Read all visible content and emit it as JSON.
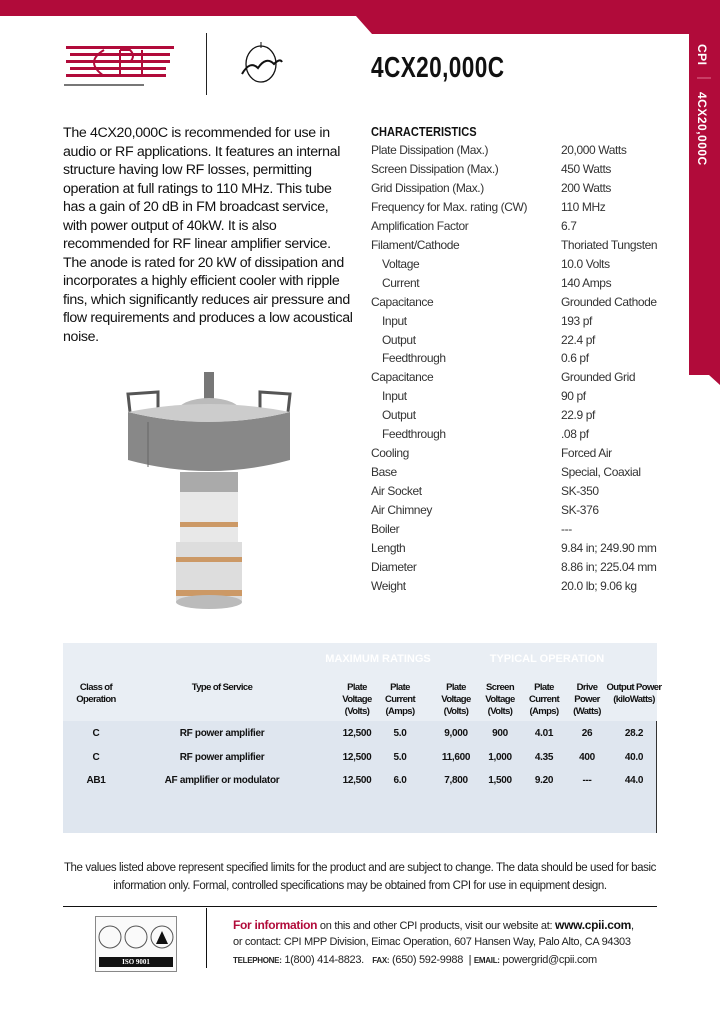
{
  "brand": {
    "color": "#b10b3a",
    "company": "CPI",
    "tagline": "Communications & Power Industries",
    "sub_brand": "Eimac"
  },
  "sidebar": {
    "brand": "CPI",
    "model": "4CX20,000C"
  },
  "title": "4CX20,000C",
  "intro": "The 4CX20,000C is recommended for use in audio or RF applications. It features an internal structure having low RF losses, permitting operation at full ratings to 110 MHz. This tube has a gain of 20 dB in FM broadcast service, with power output of 40kW. It is also recommended for RF linear amplifier service. The anode is rated for 20 kW of dissipation and incorporates a highly efficient cooler with ripple fins, which significantly reduces air pressure and flow requirements and produces a low acoustical noise.",
  "characteristics": {
    "heading": "CHARACTERISTICS",
    "rows": [
      {
        "label": "Plate Dissipation (Max.)",
        "value": "20,000 Watts"
      },
      {
        "label": "Screen Dissipation (Max.)",
        "value": "450 Watts"
      },
      {
        "label": "Grid Dissipation (Max.)",
        "value": "200 Watts"
      },
      {
        "label": "Frequency for Max. rating (CW)",
        "value": "110 MHz"
      },
      {
        "label": "Amplification Factor",
        "value": "6.7"
      },
      {
        "label": "Filament/Cathode",
        "value": "Thoriated Tungsten"
      },
      {
        "label": "Voltage",
        "value": "10.0 Volts",
        "indent": true
      },
      {
        "label": "Current",
        "value": "140 Amps",
        "indent": true
      },
      {
        "label": "Capacitance",
        "value": "Grounded Cathode"
      },
      {
        "label": "Input",
        "value": "193 pf",
        "indent": true
      },
      {
        "label": "Output",
        "value": "22.4 pf",
        "indent": true
      },
      {
        "label": "Feedthrough",
        "value": "0.6 pf",
        "indent": true
      },
      {
        "label": "Capacitance",
        "value": "Grounded Grid"
      },
      {
        "label": "Input",
        "value": "90 pf",
        "indent": true
      },
      {
        "label": "Output",
        "value": "22.9 pf",
        "indent": true
      },
      {
        "label": "Feedthrough",
        "value": ".08 pf",
        "indent": true
      },
      {
        "label": "Cooling",
        "value": "Forced Air"
      },
      {
        "label": "Base",
        "value": "Special, Coaxial"
      },
      {
        "label": "Air Socket",
        "value": "SK-350"
      },
      {
        "label": "Air Chimney",
        "value": "SK-376"
      },
      {
        "label": "Boiler",
        "value": "---"
      },
      {
        "label": "Length",
        "value": "9.84 in; 249.90 mm"
      },
      {
        "label": "Diameter",
        "value": "8.86 in; 225.04 mm"
      },
      {
        "label": "Weight",
        "value": "20.0 lb; 9.06 kg"
      }
    ]
  },
  "table": {
    "groups": [
      "MAXIMUM RATINGS",
      "TYPICAL OPERATION"
    ],
    "headers": [
      "Class of Operation",
      "Type of Service",
      "Plate Voltage (Volts)",
      "Plate Current (Amps)",
      "Plate Voltage (Volts)",
      "Screen Voltage (Volts)",
      "Plate Current (Amps)",
      "Drive Power (Watts)",
      "Output Power (kiloWatts)"
    ],
    "rows": [
      [
        "C",
        "RF power amplifier",
        "12,500",
        "5.0",
        "9,000",
        "900",
        "4.01",
        "26",
        "28.2"
      ],
      [
        "C",
        "RF power amplifier",
        "12,500",
        "5.0",
        "11,600",
        "1,000",
        "4.35",
        "400",
        "40.0"
      ],
      [
        "AB1",
        "AF amplifier or modulator",
        "12,500",
        "6.0",
        "7,800",
        "1,500",
        "9.20",
        "---",
        "44.0"
      ]
    ]
  },
  "note": "The values listed above represent specified limits for the product and are subject to change. The data should be used for basic information only. Formal, controlled specifications may be obtained from CPI for use in equipment design.",
  "footer": {
    "iso": "ISO 9001",
    "info_lead": "For information",
    "info_rest": " on this and other CPI products, visit our website at: ",
    "website": "www.cpii.com",
    "contact": "or contact: CPI MPP Division, Eimac Operation, 607 Hansen Way, Palo Alto, CA 94303",
    "tel_label": "TELEPHONE:",
    "tel": "1(800) 414-8823.",
    "fax_label": "FAX:",
    "fax": "(650) 592-9988",
    "email_label": "EMAIL:",
    "email": "powergrid@cpii.com"
  }
}
